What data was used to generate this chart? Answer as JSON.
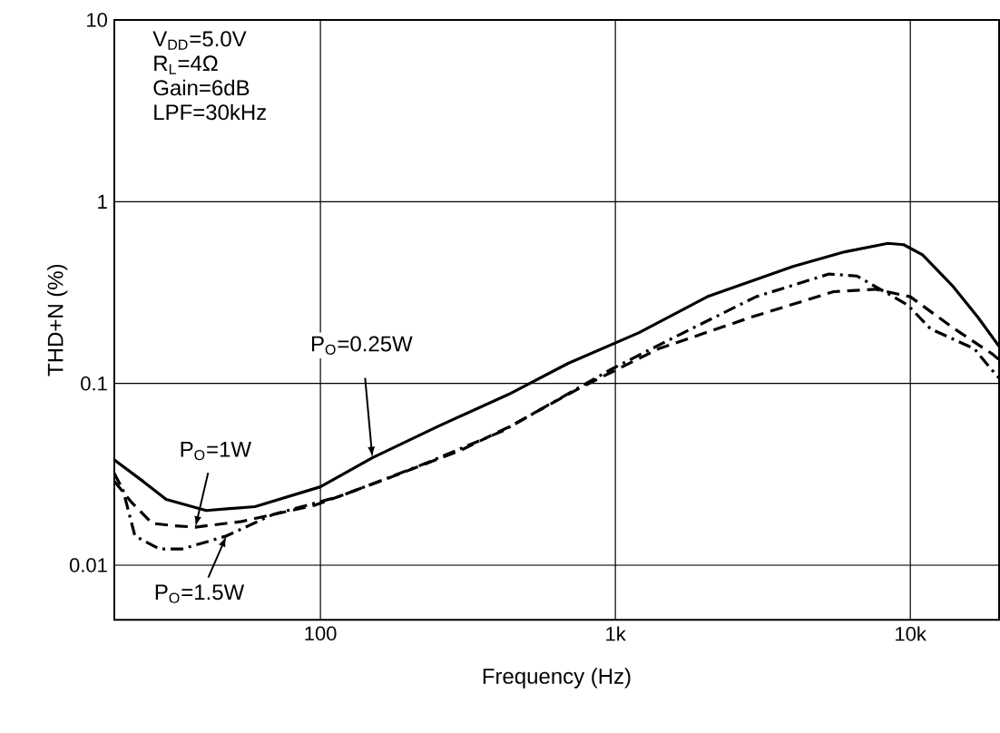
{
  "chart_data": {
    "type": "line",
    "xlabel": "Frequency (Hz)",
    "ylabel": "THD+N (%)",
    "log": "xy",
    "grid": true,
    "marker": "none",
    "xlim": [
      20,
      20000
    ],
    "ylim": [
      0.005,
      10
    ],
    "xticks": [
      100,
      {
        "value": 1000,
        "label": "1k"
      },
      {
        "value": 10000,
        "label": "10k"
      }
    ],
    "yticks": [
      0.01,
      0.1,
      1,
      10
    ],
    "series": [
      {
        "color": "#000000",
        "line_style": "solid",
        "x": [
          20,
          25,
          30,
          41,
          60,
          100,
          150,
          250,
          434,
          692,
          1200,
          2050,
          4000,
          6000,
          8400,
          9500,
          11000,
          14000,
          17000,
          20000
        ],
        "values": [
          0.038,
          0.029,
          0.023,
          0.02,
          0.021,
          0.027,
          0.039,
          0.058,
          0.087,
          0.129,
          0.19,
          0.3,
          0.44,
          0.53,
          0.59,
          0.58,
          0.51,
          0.34,
          0.23,
          0.16
        ]
      },
      {
        "color": "#000000",
        "line_style": "dashed",
        "x": [
          20,
          23,
          26.9,
          32,
          37.7,
          54,
          96,
          178,
          300,
          434,
          763,
          1400,
          2850,
          5500,
          7600,
          10000,
          14100,
          19000,
          20000
        ],
        "values": [
          0.029,
          0.022,
          0.017,
          0.0165,
          0.0162,
          0.0174,
          0.0214,
          0.031,
          0.043,
          0.0575,
          0.095,
          0.155,
          0.23,
          0.32,
          0.33,
          0.3,
          0.2,
          0.145,
          0.135
        ]
      },
      {
        "color": "#000000",
        "line_style": "dotted",
        "x": [
          20,
          21.4,
          23.5,
          28.4,
          34,
          43.5,
          48,
          69,
          117,
          224,
          417,
          970,
          1700,
          3000,
          5300,
          6600,
          9800,
          11700,
          16500,
          18800,
          20000
        ],
        "values": [
          0.032,
          0.026,
          0.0145,
          0.0123,
          0.0123,
          0.0138,
          0.0145,
          0.019,
          0.024,
          0.036,
          0.055,
          0.12,
          0.19,
          0.3,
          0.4,
          0.39,
          0.27,
          0.2,
          0.155,
          0.12,
          0.107
        ]
      }
    ],
    "annotations": [
      "V$_{DD}$=5.0V",
      "R$_{L}$=4Ω",
      "Gain=6dB",
      "LPF=30kHz",
      {
        "text": "P$_{O}$=0.25W",
        "x": 150,
        "y": 0.039
      },
      {
        "text": "P$_{O}$=1W",
        "x": 37.7,
        "y": 0.0162
      },
      {
        "text": "P$_{O}$=1.5W",
        "x": 48,
        "y": 0.0145
      }
    ]
  }
}
